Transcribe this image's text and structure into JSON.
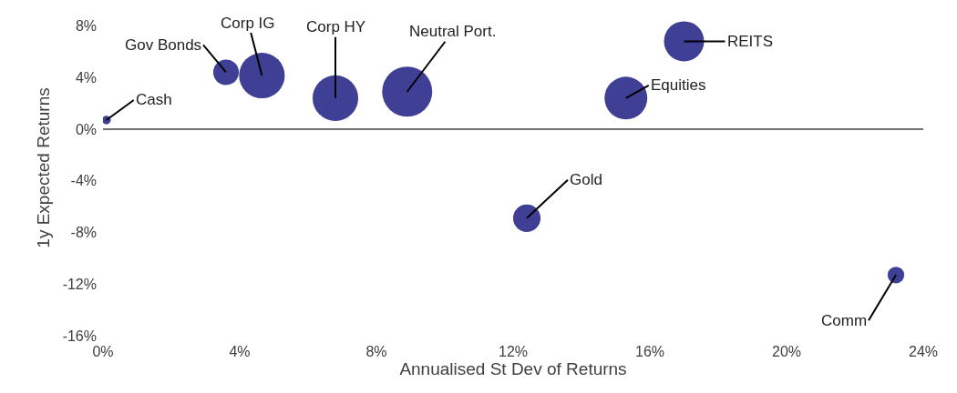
{
  "chart_data": {
    "type": "bubble",
    "xlabel": "Annualised St Dev of Returns",
    "ylabel": "1y Expected Returns",
    "x": [
      0.1,
      3.6,
      4.65,
      6.8,
      8.9,
      17.0,
      15.3,
      12.4,
      23.2
    ],
    "values": [
      0.7,
      4.4,
      4.15,
      2.4,
      2.9,
      6.8,
      2.4,
      -6.9,
      -11.3
    ],
    "sizes": [
      0.03,
      0.26,
      0.83,
      0.83,
      1,
      0.64,
      0.73,
      0.3,
      0.11
    ],
    "color": "#3f3f96",
    "annotations": [
      {
        "text": "Cash",
        "x": 0.1,
        "y": 0.7
      },
      {
        "text": "Gov Bonds",
        "x": 3.6,
        "y": 4.4
      },
      {
        "text": "Corp IG",
        "x": 4.65,
        "y": 4.15
      },
      {
        "text": "Corp HY",
        "x": 6.8,
        "y": 2.4
      },
      {
        "text": "Neutral Port.",
        "x": 8.9,
        "y": 2.9
      },
      {
        "text": "REITS",
        "x": 17.0,
        "y": 6.8
      },
      {
        "text": "Equities",
        "x": 15.3,
        "y": 2.4
      },
      {
        "text": "Gold",
        "x": 12.4,
        "y": -6.9
      },
      {
        "text": "Comm",
        "x": 23.2,
        "y": -11.3
      }
    ],
    "xlim": [
      0,
      24
    ],
    "ylim": [
      -16,
      10
    ],
    "xticks": [
      {
        "value": 0,
        "label": "0%"
      },
      {
        "value": 4,
        "label": "4%"
      },
      {
        "value": 8,
        "label": "8%"
      },
      {
        "value": 12,
        "label": "12%"
      },
      {
        "value": 16,
        "label": "16%"
      },
      {
        "value": 20,
        "label": "20%"
      },
      {
        "value": 24,
        "label": "24%"
      }
    ],
    "yticks": [
      {
        "value": -16,
        "label": "-16%"
      },
      {
        "value": -12,
        "label": "-12%"
      },
      {
        "value": -8,
        "label": "-8%"
      },
      {
        "value": -4,
        "label": "-4%"
      },
      {
        "value": 0,
        "label": "0%"
      },
      {
        "value": 4,
        "label": "4%"
      },
      {
        "value": 8,
        "label": "8%"
      }
    ],
    "ref_lines": [
      {
        "axis": "y",
        "value": 0,
        "color": "#404040"
      }
    ]
  }
}
